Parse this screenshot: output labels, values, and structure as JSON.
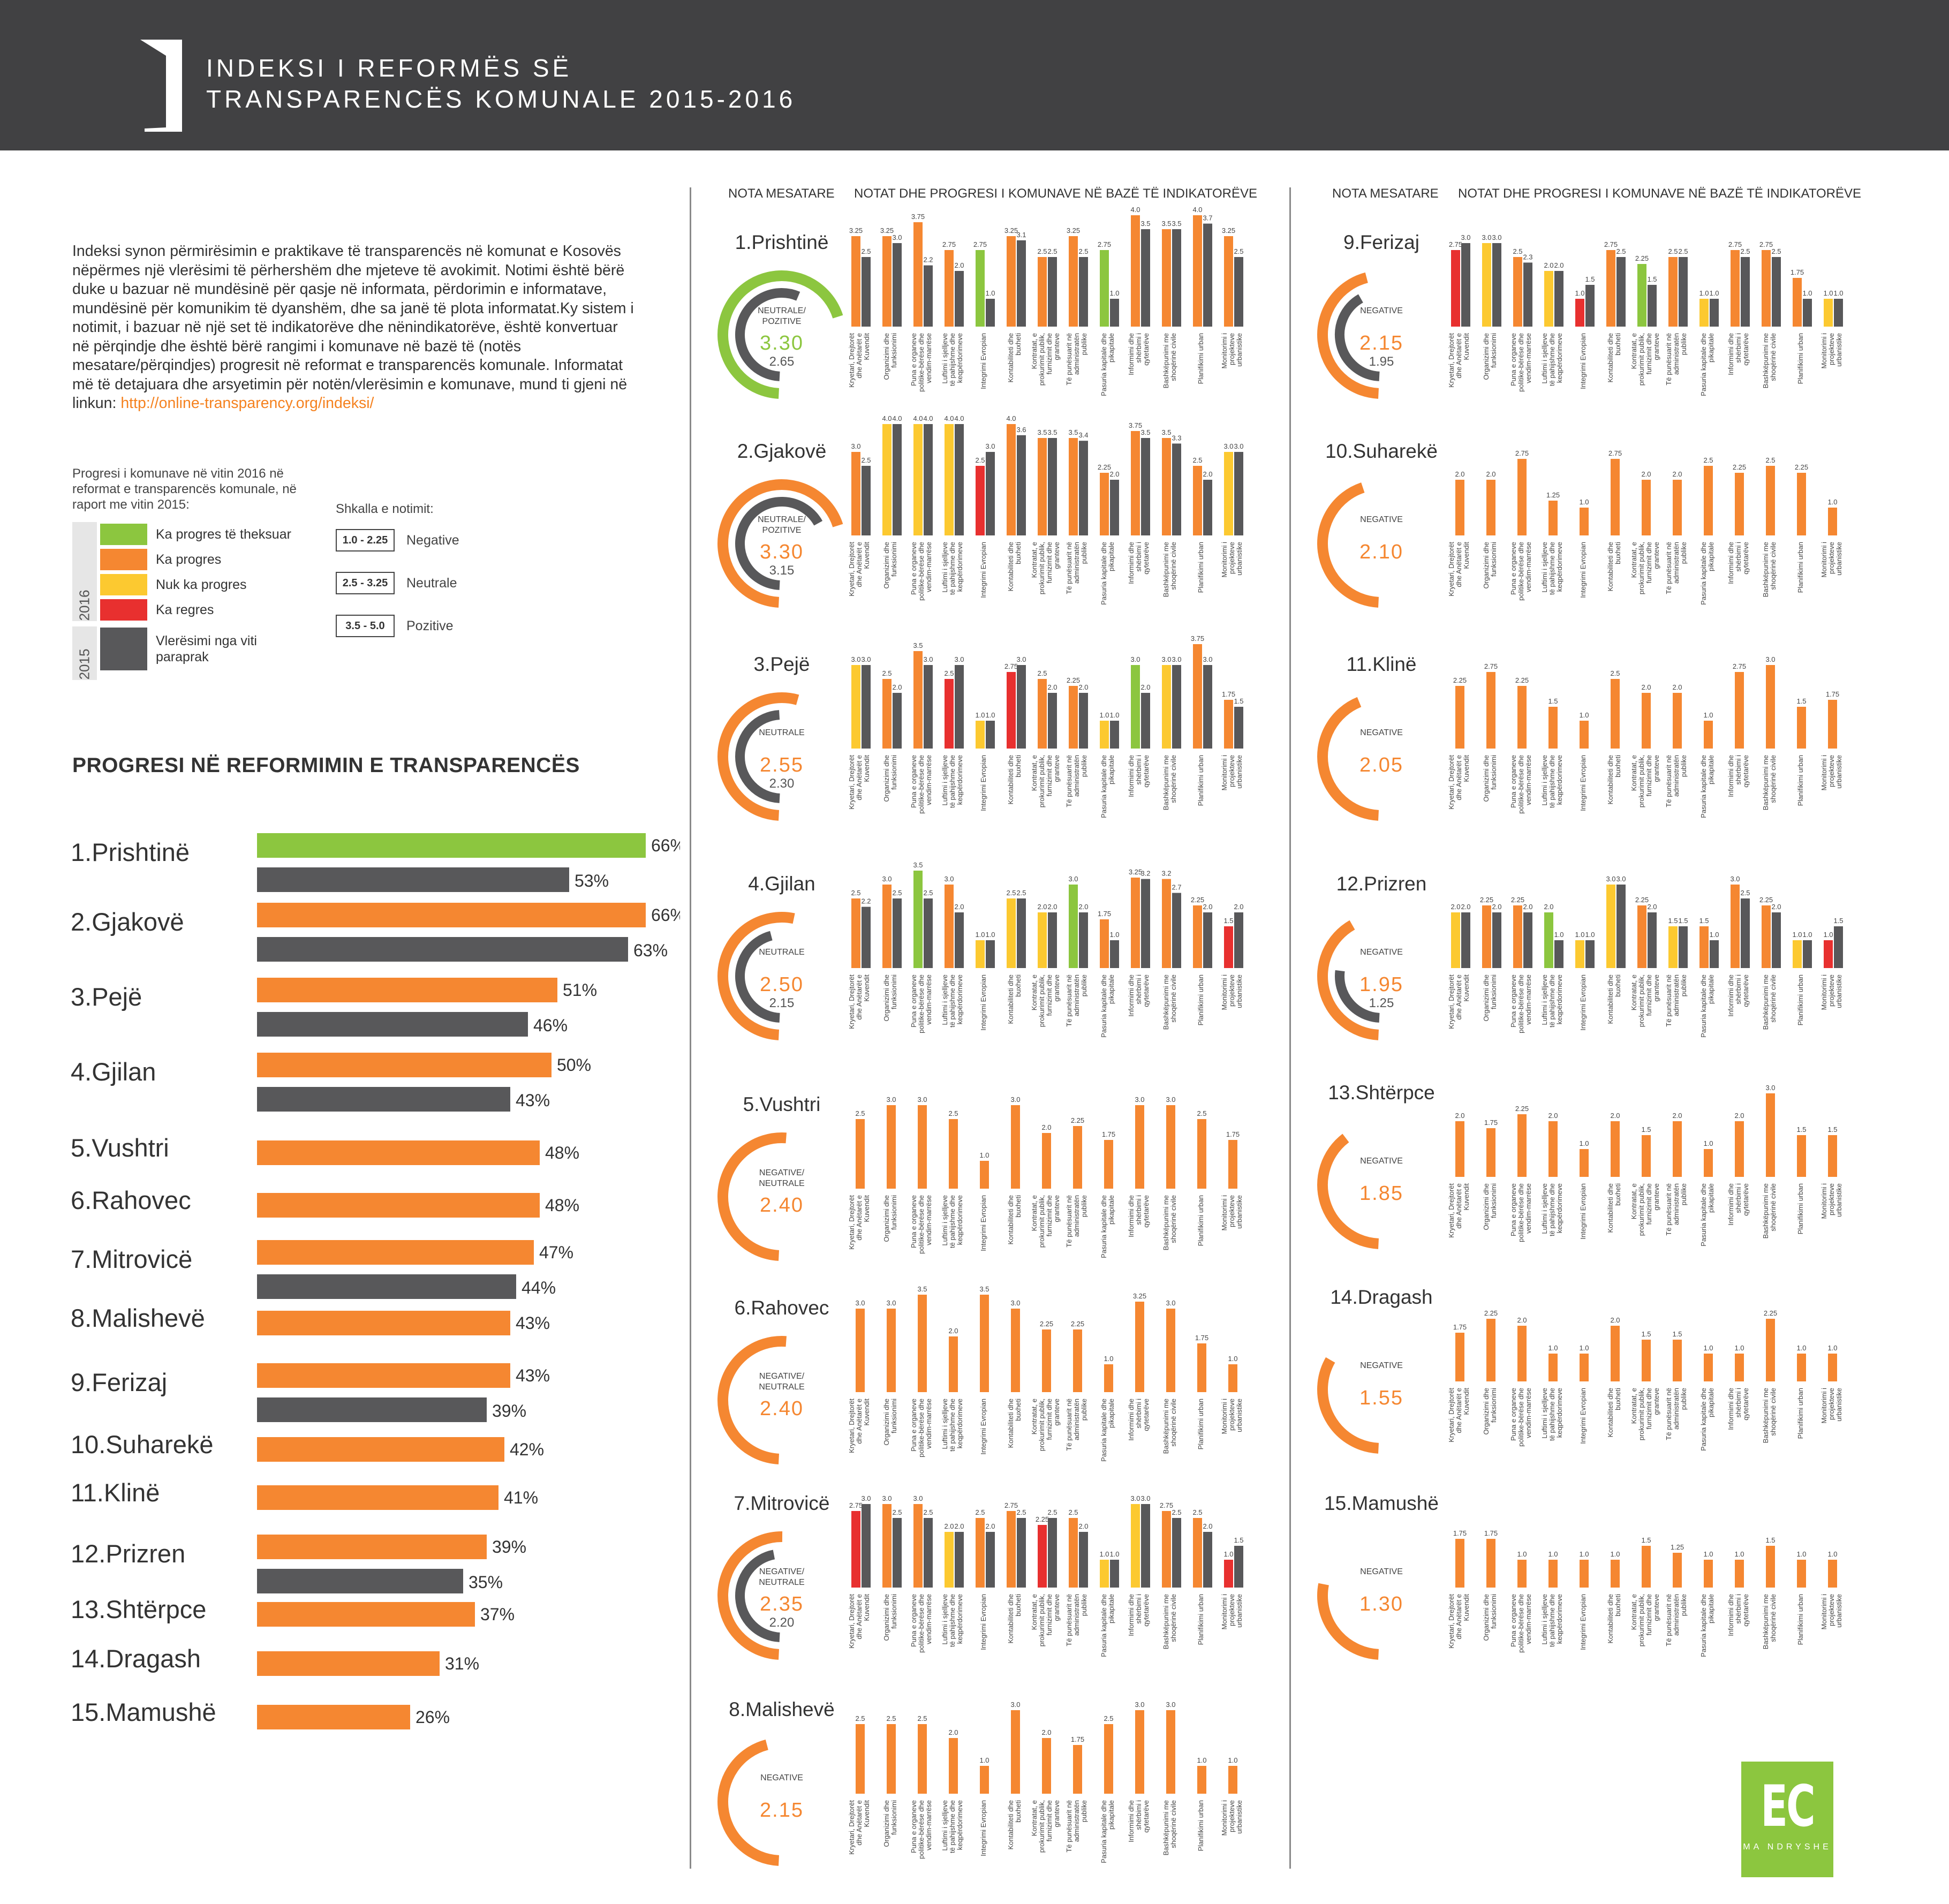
{
  "header": {
    "title_line1": "INDEKSI I REFORMËS SË",
    "title_line2": "TRANSPARENCËS KOMUNALE 2015-2016"
  },
  "intro": {
    "text": "Indeksi synon përmirësimin e praktikave të transparencës në komunat e Kosovës nëpërmes një vlerësimi të përhershëm dhe mjeteve të avokimit. Notimi është bërë duke u bazuar në mundësinë për qasje në informata, përdorimin e informatave, mundësinë për komunikim të dyanshëm, dhe sa janë të plota informatat.Ky sistem i notimit, i bazuar në një set të indikatorëve dhe nënindikatorëve, është konvertuar në përqindje dhe është bërë rangimi i komunave në bazë të (notës mesatare/përqindjes) progresit në reformat e transparencës komunale. Informatat më të detajuara dhe arsyetimin për notën/vlerësimin e komunave, mund ti gjeni në linkun:",
    "link": "http://online-transparency.org/indeksi/"
  },
  "legend": {
    "title": "Progresi i komunave në vitin 2016 në reformat e transparencës komunale, në raport me vitin 2015:",
    "year_2016": "2016",
    "year_2015": "2015",
    "items": [
      {
        "label": "Ka progres të theksuar",
        "color": "#8cc63f"
      },
      {
        "label": "Ka progres",
        "color": "#f58731"
      },
      {
        "label": "Nuk ka progres",
        "color": "#fcc930"
      },
      {
        "label": "Ka regres",
        "color": "#e8302f"
      },
      {
        "label": "Vlerësimi nga viti paraprak",
        "color": "#58585a"
      }
    ],
    "scale_title": "Shkalla e notimit:",
    "scale": [
      {
        "range": "1.0 - 2.25",
        "label": "Negative"
      },
      {
        "range": "2.5 - 3.25",
        "label": "Neutrale"
      },
      {
        "range": "3.5 - 5.0",
        "label": "Pozitive"
      }
    ]
  },
  "colors": {
    "green": "#8cc63f",
    "orange": "#f58731",
    "yellow": "#fcc930",
    "red": "#e8302f",
    "gray": "#58585a",
    "header": "#414143"
  },
  "column_headers": {
    "avg": "NOTA MESATARE",
    "ind": "NOTAT DHE PROGRESI I KOMUNAVE NË BAZË TË INDIKATORËVE"
  },
  "indicators": [
    "Kryetari, Drejtorët dhe Anëtarët e Kuvendit",
    "Organizimi dhe funksionimi",
    "Puna e organeve politike-bërëse dhe vendim-marrëse",
    "Luftimi i sjelljeve të pahijshme dhe keqpërdorimeve",
    "Integrimi Evropian",
    "Kontabiliteti dhe buxheti",
    "Kontratat, e prokurimit publik, furnizimit dhe granteve",
    "Të punësuarit në administratën publike",
    "Pasuria kapitale dhe pikapitale",
    "Informimi dhe shërbimi i qytetarëve",
    "Bashkëpunimi me shoqërinë civile",
    "Planifikimi urban",
    "Monitorimi i projekteve urbanistike"
  ],
  "progress_title": "PROGRESI NË REFORMIMIN E TRANSPARENCËS",
  "logo": {
    "big": "EC",
    "small": "MA NDRYSHE"
  },
  "chart_data": [
    {
      "type": "bar",
      "title": "PROGRESI NË REFORMIMIN E TRANSPARENCËS",
      "categories": [
        "1.Prishtinë",
        "2.Gjakovë",
        "3.Pejë",
        "4.Gjilan",
        "5.Vushtri",
        "6.Rahovec",
        "7.Mitrovicë",
        "8.Malishevë",
        "9.Ferizaj",
        "10.Suharekë",
        "11.Klinë",
        "12.Prizren",
        "13.Shtërpce",
        "14.Dragash",
        "15.Mamushë"
      ],
      "series": [
        {
          "name": "2016",
          "values": [
            66,
            66,
            51,
            50,
            48,
            48,
            47,
            43,
            43,
            42,
            41,
            39,
            37,
            31,
            26
          ],
          "colors": [
            "green",
            "orange",
            "orange",
            "orange",
            "orange",
            "orange",
            "orange",
            "orange",
            "orange",
            "orange",
            "orange",
            "orange",
            "orange",
            "orange",
            "orange"
          ]
        },
        {
          "name": "2015",
          "values": [
            53,
            63,
            46,
            43,
            null,
            null,
            44,
            null,
            39,
            null,
            null,
            35,
            null,
            null,
            null
          ]
        }
      ],
      "unit": "%"
    },
    {
      "type": "bar",
      "title": "NOTAT DHE PROGRESI I KOMUNAVE NË BAZË TË INDIKATORËVE",
      "municipalities": [
        {
          "name": "1.Prishtinë",
          "rating": "NEUTRALE/ POZITIVE",
          "avg": "3.30",
          "prev": "2.65",
          "color": "green",
          "v16": [
            3.25,
            3.25,
            3.75,
            2.75,
            2.75,
            3.25,
            2.5,
            3.25,
            2.75,
            4.0,
            3.5,
            4.0,
            3.25
          ],
          "v15": [
            2.5,
            3.0,
            2.2,
            2.0,
            1.0,
            3.1,
            2.5,
            2.5,
            1.0,
            3.5,
            3.5,
            3.7,
            2.5
          ],
          "c": [
            "o",
            "o",
            "o",
            "o",
            "g",
            "o",
            "o",
            "o",
            "g",
            "o",
            "o",
            "o",
            "o"
          ]
        },
        {
          "name": "2.Gjakovë",
          "rating": "NEUTRALE/ POZITIVE",
          "avg": "3.30",
          "prev": "3.15",
          "color": "orange",
          "v16": [
            3.0,
            4.0,
            4.0,
            4.0,
            2.5,
            4.0,
            3.5,
            3.5,
            2.25,
            3.75,
            3.5,
            2.5,
            3.0
          ],
          "v15": [
            2.5,
            4.0,
            4.0,
            4.0,
            3.0,
            3.6,
            3.5,
            3.4,
            2.0,
            3.5,
            3.3,
            2.0,
            3.0
          ],
          "c": [
            "o",
            "y",
            "y",
            "y",
            "r",
            "o",
            "o",
            "o",
            "o",
            "o",
            "o",
            "o",
            "y"
          ]
        },
        {
          "name": "3.Pejë",
          "rating": "NEUTRALE",
          "avg": "2.55",
          "prev": "2.30",
          "color": "orange",
          "v16": [
            3.0,
            2.5,
            3.5,
            2.5,
            1.0,
            2.75,
            2.5,
            2.25,
            1.0,
            3.0,
            3.0,
            3.75,
            1.75
          ],
          "v15": [
            3.0,
            2.0,
            3.0,
            3.0,
            1.0,
            3.0,
            2.0,
            2.0,
            1.0,
            2.0,
            3.0,
            3.0,
            1.5
          ],
          "c": [
            "y",
            "o",
            "o",
            "r",
            "y",
            "r",
            "o",
            "o",
            "y",
            "g",
            "y",
            "o",
            "o"
          ]
        },
        {
          "name": "4.Gjilan",
          "rating": "NEUTRALE",
          "avg": "2.50",
          "prev": "2.15",
          "color": "orange",
          "v16": [
            2.5,
            3.0,
            3.5,
            3.0,
            1.0,
            2.5,
            2.0,
            3.0,
            1.75,
            3.25,
            3.2,
            2.25,
            1.5
          ],
          "v15": [
            2.2,
            2.5,
            2.5,
            2.0,
            1.0,
            2.5,
            2.0,
            2.0,
            1.0,
            3.2,
            2.7,
            2.0,
            2.0
          ],
          "c": [
            "o",
            "o",
            "g",
            "o",
            "y",
            "y",
            "y",
            "g",
            "o",
            "o",
            "o",
            "o",
            "r"
          ]
        },
        {
          "name": "5.Vushtri",
          "rating": "NEGATIVE/ NEUTRALE",
          "avg": "2.40",
          "prev": "",
          "color": "orange",
          "v16": [
            2.5,
            3.0,
            3.0,
            2.5,
            1.0,
            3.0,
            2.0,
            2.25,
            1.75,
            3.0,
            3.0,
            2.5,
            1.75
          ],
          "v15": [],
          "c": []
        },
        {
          "name": "6.Rahovec",
          "rating": "NEGATIVE/ NEUTRALE",
          "avg": "2.40",
          "prev": "",
          "color": "orange",
          "v16": [
            3.0,
            3.0,
            3.5,
            2.0,
            3.5,
            3.0,
            2.25,
            2.25,
            1.0,
            3.25,
            3.0,
            1.75,
            1.0
          ],
          "v15": [],
          "c": []
        },
        {
          "name": "7.Mitrovicë",
          "rating": "NEGATIVE/ NEUTRALE",
          "avg": "2.35",
          "prev": "2.20",
          "color": "orange",
          "v16": [
            2.75,
            3.0,
            3.0,
            2.0,
            2.5,
            2.75,
            2.25,
            2.5,
            1.0,
            3.0,
            2.75,
            2.5,
            1.0
          ],
          "v15": [
            3.0,
            2.5,
            2.5,
            2.0,
            2.0,
            2.5,
            2.5,
            2.0,
            1.0,
            3.0,
            2.5,
            2.0,
            1.5
          ],
          "c": [
            "r",
            "o",
            "o",
            "y",
            "o",
            "o",
            "r",
            "o",
            "y",
            "y",
            "o",
            "o",
            "r"
          ]
        },
        {
          "name": "8.Malishevë",
          "rating": "NEGATIVE",
          "avg": "2.15",
          "prev": "",
          "color": "orange",
          "v16": [
            2.5,
            2.5,
            2.5,
            2.0,
            1.0,
            3.0,
            2.0,
            1.75,
            2.5,
            3.0,
            3.0,
            1.0,
            1.0
          ],
          "v15": [],
          "c": []
        },
        {
          "name": "9.Ferizaj",
          "rating": "NEGATIVE",
          "avg": "2.15",
          "prev": "1.95",
          "color": "orange",
          "v16": [
            2.75,
            3.0,
            2.5,
            2.0,
            1.0,
            2.75,
            2.25,
            2.5,
            1.0,
            2.75,
            2.75,
            1.75,
            1.0
          ],
          "v15": [
            3.0,
            3.0,
            2.3,
            2.0,
            1.5,
            2.5,
            1.5,
            2.5,
            1.0,
            2.5,
            2.5,
            1.0,
            1.0
          ],
          "c": [
            "r",
            "y",
            "o",
            "y",
            "r",
            "o",
            "g",
            "o",
            "y",
            "o",
            "o",
            "o",
            "y"
          ]
        },
        {
          "name": "10.Suharekë",
          "rating": "NEGATIVE",
          "avg": "2.10",
          "prev": "",
          "color": "orange",
          "v16": [
            2.0,
            2.0,
            2.75,
            1.25,
            1.0,
            2.75,
            2.0,
            2.0,
            2.5,
            2.25,
            2.5,
            2.25,
            1.0
          ],
          "v15": [],
          "c": []
        },
        {
          "name": "11.Klinë",
          "rating": "NEGATIVE",
          "avg": "2.05",
          "prev": "",
          "color": "orange",
          "v16": [
            2.25,
            2.75,
            2.25,
            1.5,
            1.0,
            2.5,
            2.0,
            2.0,
            1.0,
            2.75,
            3.0,
            1.5,
            1.75
          ],
          "v15": [],
          "c": []
        },
        {
          "name": "12.Prizren",
          "rating": "NEGATIVE",
          "avg": "1.95",
          "prev": "1.25",
          "color": "orange",
          "v16": [
            2.0,
            2.25,
            2.25,
            2.0,
            1.0,
            3.0,
            2.25,
            1.5,
            1.5,
            3.0,
            2.25,
            1.0,
            1.0
          ],
          "v15": [
            2.0,
            2.0,
            2.0,
            1.0,
            1.0,
            3.0,
            2.0,
            1.5,
            1.0,
            2.5,
            2.0,
            1.0,
            1.5
          ],
          "c": [
            "y",
            "o",
            "o",
            "g",
            "y",
            "y",
            "o",
            "y",
            "o",
            "o",
            "o",
            "y",
            "r"
          ]
        },
        {
          "name": "13.Shtërpce",
          "rating": "NEGATIVE",
          "avg": "1.85",
          "prev": "",
          "color": "orange",
          "v16": [
            2.0,
            1.75,
            2.25,
            2.0,
            1.0,
            2.0,
            1.5,
            2.0,
            1.0,
            2.0,
            3.0,
            1.5,
            1.5
          ],
          "v15": [],
          "c": []
        },
        {
          "name": "14.Dragash",
          "rating": "NEGATIVE",
          "avg": "1.55",
          "prev": "",
          "color": "orange",
          "v16": [
            1.75,
            2.25,
            2.0,
            1.0,
            1.0,
            2.0,
            1.5,
            1.5,
            1.0,
            1.0,
            2.25,
            1.0,
            1.0
          ],
          "v15": [],
          "c": []
        },
        {
          "name": "15.Mamushë",
          "rating": "NEGATIVE",
          "avg": "1.30",
          "prev": "",
          "color": "orange",
          "v16": [
            1.75,
            1.75,
            1.0,
            1.0,
            1.0,
            1.0,
            1.5,
            1.25,
            1.0,
            1.0,
            1.5,
            1.0,
            1.0
          ],
          "v15": [],
          "c": []
        }
      ],
      "ylim": [
        0,
        5
      ]
    }
  ]
}
